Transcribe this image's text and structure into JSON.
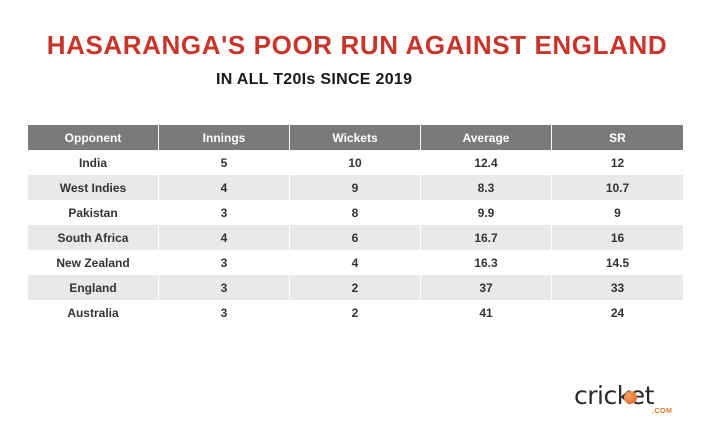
{
  "header": {
    "title": "HASARANGA'S POOR RUN AGAINST ENGLAND",
    "subtitle": "IN ALL T20Is SINCE 2019"
  },
  "chart_data": {
    "type": "table",
    "columns": [
      "Opponent",
      "Innings",
      "Wickets",
      "Average",
      "SR"
    ],
    "rows": [
      [
        "India",
        "5",
        "10",
        "12.4",
        "12"
      ],
      [
        "West Indies",
        "4",
        "9",
        "8.3",
        "10.7"
      ],
      [
        "Pakistan",
        "3",
        "8",
        "9.9",
        "9"
      ],
      [
        "South Africa",
        "4",
        "6",
        "16.7",
        "16"
      ],
      [
        "New Zealand",
        "3",
        "4",
        "16.3",
        "14.5"
      ],
      [
        "England",
        "3",
        "2",
        "37",
        "33"
      ],
      [
        "Australia",
        "3",
        "2",
        "41",
        "24"
      ]
    ]
  },
  "logo": {
    "text": "cricket",
    "suffix": ".COM",
    "icon": "cricket-ball-icon"
  },
  "colors": {
    "title": "#c8352b",
    "header_bg": "#7a7a7a",
    "stripe": "#e9e9e9",
    "brand_accent": "#e8742a"
  }
}
